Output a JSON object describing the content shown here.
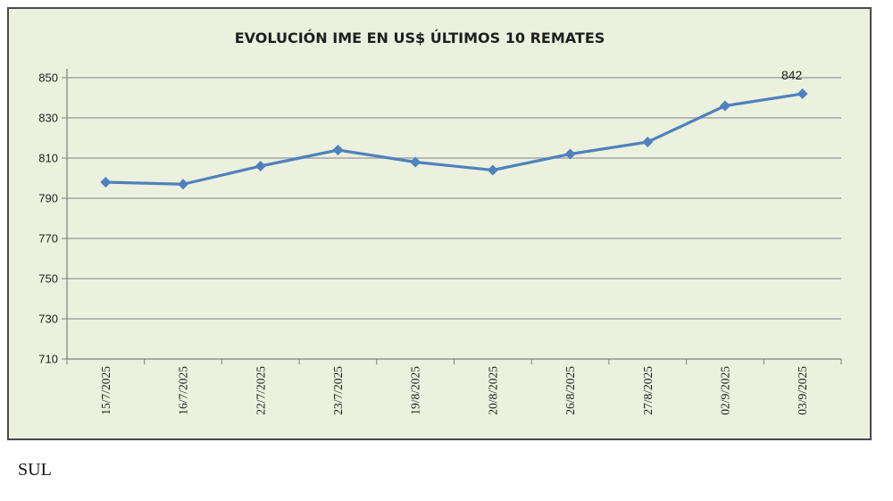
{
  "chart_data": {
    "type": "line",
    "title": "EVOLUCIÓN IME EN US$ ÚLTIMOS 10 REMATES",
    "categories": [
      "15/7/2025",
      "16/7/2025",
      "22/7/2025",
      "23/7/2025",
      "19/8/2025",
      "20/8/2025",
      "26/8/2025",
      "27/8/2025",
      "02/9/2025",
      "03/9/2025"
    ],
    "series": [
      {
        "values": [
          798,
          797,
          806,
          814,
          808,
          804,
          812,
          818,
          836,
          842
        ]
      }
    ],
    "data_labels": [
      {
        "index": 9,
        "text": "842"
      }
    ],
    "ylim": [
      710,
      850
    ],
    "yticks": [
      710,
      730,
      750,
      770,
      790,
      810,
      830,
      850
    ],
    "grid": true,
    "legend": "none",
    "line_color": "#4f81bd",
    "background": "#ebf1de",
    "grid_color": "#a6a6a6"
  },
  "caption": "SUL"
}
